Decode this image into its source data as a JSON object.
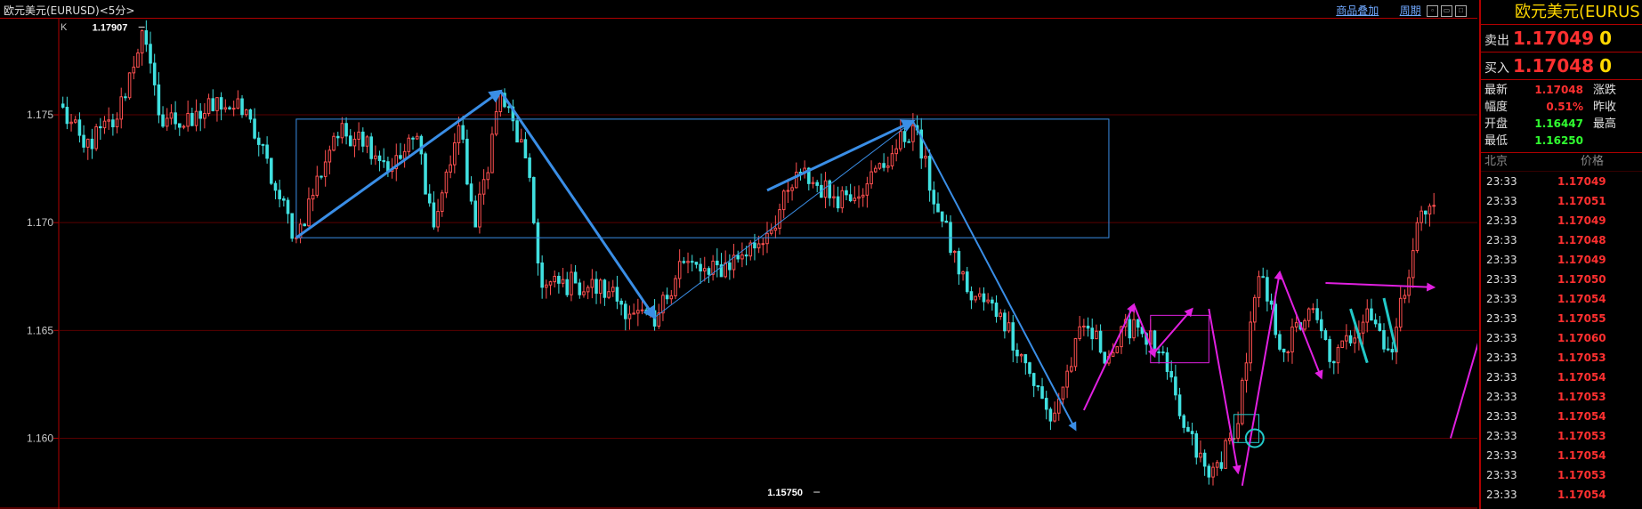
{
  "header": {
    "title": "欧元美元(EURUSD)<5分>",
    "links": [
      "商品叠加",
      "周期"
    ]
  },
  "panel": {
    "title": "欧元美元(EURUS",
    "sell": {
      "label": "卖出",
      "price": "1.17049",
      "vol": "0"
    },
    "buy": {
      "label": "买入",
      "price": "1.17048",
      "vol": "0"
    },
    "stats": [
      {
        "label": "最新",
        "value": "1.17048",
        "color": "#ff3030",
        "label2": "涨跌"
      },
      {
        "label": "幅度",
        "value": "0.51%",
        "color": "#ff3030",
        "label2": "昨收"
      },
      {
        "label": "开盘",
        "value": "1.16447",
        "color": "#30ff30",
        "label2": "最高"
      },
      {
        "label": "最低",
        "value": "1.16250",
        "color": "#30ff30",
        "label2": ""
      }
    ],
    "ticks_header": {
      "time": "北京",
      "price": "价格"
    },
    "ticks": [
      {
        "time": "23:33",
        "price": "1.17049"
      },
      {
        "time": "23:33",
        "price": "1.17051"
      },
      {
        "time": "23:33",
        "price": "1.17049"
      },
      {
        "time": "23:33",
        "price": "1.17048"
      },
      {
        "time": "23:33",
        "price": "1.17049"
      },
      {
        "time": "23:33",
        "price": "1.17050"
      },
      {
        "time": "23:33",
        "price": "1.17054"
      },
      {
        "time": "23:33",
        "price": "1.17055"
      },
      {
        "time": "23:33",
        "price": "1.17060"
      },
      {
        "time": "23:33",
        "price": "1.17053"
      },
      {
        "time": "23:33",
        "price": "1.17054"
      },
      {
        "time": "23:33",
        "price": "1.17053"
      },
      {
        "time": "23:33",
        "price": "1.17054"
      },
      {
        "time": "23:33",
        "price": "1.17053"
      },
      {
        "time": "23:33",
        "price": "1.17054"
      },
      {
        "time": "23:33",
        "price": "1.17053"
      },
      {
        "time": "23:33",
        "price": "1.17054"
      }
    ]
  },
  "chart_data": {
    "type": "candlestick",
    "corner_label": "K",
    "ylim": [
      1.1568,
      1.1795
    ],
    "yticks": [
      "1.160",
      "1.165",
      "1.170",
      "1.175"
    ],
    "ytick_values": [
      1.16,
      1.165,
      1.17,
      1.175
    ],
    "annotations": [
      {
        "text": "1.17907",
        "index": 20,
        "value": 1.17907
      },
      {
        "text": "1.15750",
        "index": 182,
        "value": 1.1575
      }
    ],
    "anchors": [
      [
        0,
        1.1755
      ],
      [
        6,
        1.1735
      ],
      [
        14,
        1.1748
      ],
      [
        20,
        1.1789
      ],
      [
        24,
        1.175
      ],
      [
        32,
        1.1745
      ],
      [
        38,
        1.1758
      ],
      [
        46,
        1.1748
      ],
      [
        52,
        1.1715
      ],
      [
        57,
        1.1693
      ],
      [
        66,
        1.174
      ],
      [
        72,
        1.1742
      ],
      [
        80,
        1.1725
      ],
      [
        86,
        1.174
      ],
      [
        90,
        1.1698
      ],
      [
        96,
        1.1745
      ],
      [
        100,
        1.1698
      ],
      [
        106,
        1.176
      ],
      [
        112,
        1.173
      ],
      [
        116,
        1.167
      ],
      [
        124,
        1.1672
      ],
      [
        132,
        1.1668
      ],
      [
        138,
        1.1658
      ],
      [
        143,
        1.1652
      ],
      [
        149,
        1.1682
      ],
      [
        156,
        1.1676
      ],
      [
        164,
        1.1685
      ],
      [
        170,
        1.1695
      ],
      [
        178,
        1.1723
      ],
      [
        186,
        1.1712
      ],
      [
        194,
        1.1718
      ],
      [
        200,
        1.1732
      ],
      [
        205,
        1.1745
      ],
      [
        211,
        1.1705
      ],
      [
        218,
        1.1668
      ],
      [
        226,
        1.1658
      ],
      [
        232,
        1.1635
      ],
      [
        238,
        1.1608
      ],
      [
        246,
        1.1652
      ],
      [
        252,
        1.1638
      ],
      [
        258,
        1.1655
      ],
      [
        264,
        1.164
      ],
      [
        270,
        1.1605
      ],
      [
        276,
        1.1582
      ],
      [
        282,
        1.16
      ],
      [
        288,
        1.1675
      ],
      [
        294,
        1.164
      ],
      [
        300,
        1.166
      ],
      [
        306,
        1.1635
      ],
      [
        314,
        1.166
      ],
      [
        320,
        1.164
      ],
      [
        326,
        1.17
      ],
      [
        330,
        1.1708
      ]
    ],
    "rect_zones": [
      {
        "x0": 57,
        "x1": 252,
        "y0": 1.1693,
        "y1": 1.1748,
        "color": "#3a8ee6"
      },
      {
        "x0": 262,
        "x1": 276,
        "y0": 1.1635,
        "y1": 1.1657,
        "color": "#e020e0"
      },
      {
        "x0": 282,
        "x1": 288,
        "y0": 1.1598,
        "y1": 1.1611,
        "color": "#22c8c8"
      }
    ],
    "blue_lines": [
      {
        "p": [
          [
            57,
            1.1693
          ],
          [
            106,
            1.1761
          ]
        ],
        "arrow": true,
        "thick": 3
      },
      {
        "p": [
          [
            106,
            1.1761
          ],
          [
            143,
            1.1656
          ]
        ],
        "arrow": true,
        "thick": 3
      },
      {
        "p": [
          [
            143,
            1.1656
          ],
          [
            205,
            1.1747
          ]
        ],
        "arrow": false,
        "thick": 1
      },
      {
        "p": [
          [
            170,
            1.1715
          ],
          [
            205,
            1.1747
          ]
        ],
        "arrow": true,
        "thick": 3
      },
      {
        "p": [
          [
            205,
            1.1747
          ],
          [
            244,
            1.1604
          ]
        ],
        "arrow": true,
        "thick": 2
      }
    ],
    "magenta_lines": [
      {
        "p": [
          [
            246,
            1.1613
          ],
          [
            258,
            1.1662
          ]
        ],
        "arrow": true
      },
      {
        "p": [
          [
            258,
            1.1662
          ],
          [
            263,
            1.1638
          ]
        ],
        "arrow": true
      },
      {
        "p": [
          [
            263,
            1.164
          ],
          [
            272,
            1.166
          ]
        ],
        "arrow": true
      },
      {
        "p": [
          [
            276,
            1.166
          ],
          [
            283,
            1.1584
          ]
        ],
        "arrow": true
      },
      {
        "p": [
          [
            284,
            1.1578
          ],
          [
            293,
            1.1677
          ]
        ],
        "arrow": true
      },
      {
        "p": [
          [
            293,
            1.1677
          ],
          [
            303,
            1.1628
          ]
        ],
        "arrow": true
      },
      {
        "p": [
          [
            304,
            1.1672
          ],
          [
            330,
            1.167
          ]
        ],
        "arrow": true
      },
      {
        "p": [
          [
            334,
            1.16
          ],
          [
            346,
            1.168
          ]
        ],
        "arrow": true
      }
    ],
    "cyan_lines": [
      {
        "p": [
          [
            310,
            1.166
          ],
          [
            314,
            1.1635
          ]
        ]
      },
      {
        "p": [
          [
            318,
            1.1665
          ],
          [
            321,
            1.164
          ]
        ]
      }
    ],
    "circle": {
      "index": 287,
      "value": 1.16,
      "color": "#22c8c8"
    }
  }
}
